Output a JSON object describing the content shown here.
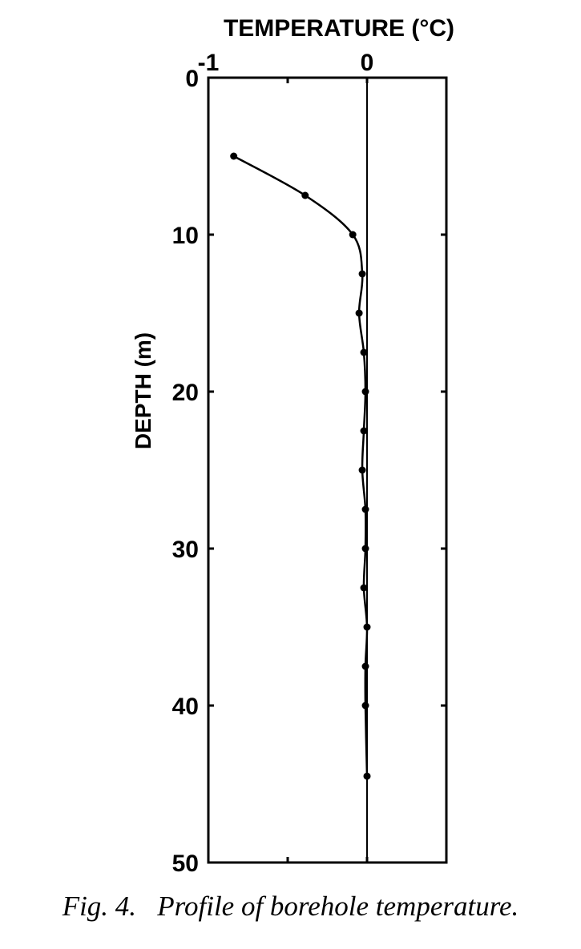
{
  "chart_data": {
    "type": "line",
    "title": "",
    "xlabel": "TEMPERATURE (°C)",
    "ylabel": "DEPTH (m)",
    "xlim": [
      -1,
      0.5
    ],
    "ylim": [
      0,
      50
    ],
    "y_inverted": true,
    "x_axis_position": "top",
    "x_ticks": [
      -1,
      -0.5,
      0,
      0.5
    ],
    "x_tick_labels": [
      "-1",
      "0"
    ],
    "x_tick_label_values": [
      -1,
      0
    ],
    "y_ticks": [
      0,
      10,
      20,
      30,
      40,
      50
    ],
    "y_tick_labels": [
      "0",
      "10",
      "20",
      "30",
      "40",
      "50"
    ],
    "reference_line_x": 0,
    "grid": false,
    "series": [
      {
        "points": [
          {
            "x": -0.84,
            "y": 5
          },
          {
            "x": -0.39,
            "y": 7.5
          },
          {
            "x": -0.09,
            "y": 10
          },
          {
            "x": -0.03,
            "y": 12.5
          },
          {
            "x": -0.05,
            "y": 15
          },
          {
            "x": -0.02,
            "y": 17.5
          },
          {
            "x": -0.01,
            "y": 20
          },
          {
            "x": -0.02,
            "y": 22.5
          },
          {
            "x": -0.03,
            "y": 25
          },
          {
            "x": -0.01,
            "y": 27.5
          },
          {
            "x": -0.01,
            "y": 30
          },
          {
            "x": -0.02,
            "y": 32.5
          },
          {
            "x": 0.0,
            "y": 35
          },
          {
            "x": -0.01,
            "y": 37.5
          },
          {
            "x": -0.01,
            "y": 40
          },
          {
            "x": 0.0,
            "y": 44.5
          }
        ]
      }
    ]
  },
  "caption": "Fig. 4.   Profile of borehole temperature."
}
